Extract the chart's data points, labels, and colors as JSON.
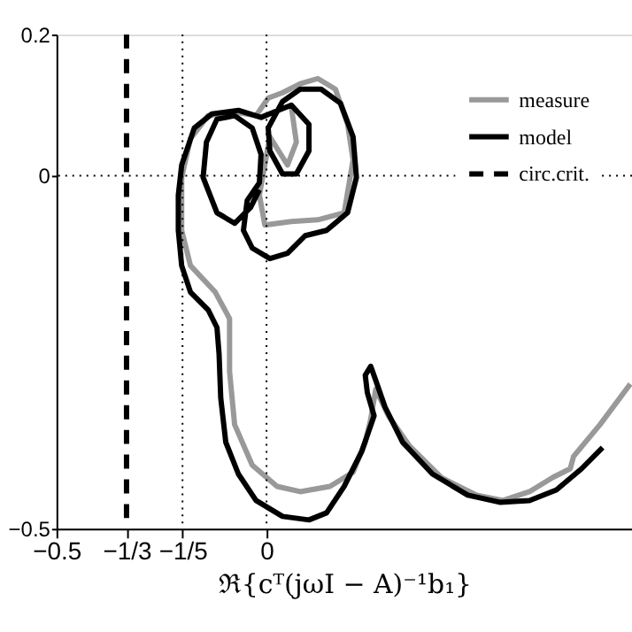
{
  "chart_data": {
    "type": "line",
    "xlabel": "ℜ{cᵀ(jωI − A)⁻¹b₁}",
    "xlim": [
      -0.5,
      0.87
    ],
    "ylim": [
      -0.5,
      0.2
    ],
    "xticks": [
      -0.5,
      {
        "value": -0.3333,
        "label": "−1/3"
      },
      {
        "value": -0.2,
        "label": "−1/5"
      },
      0
    ],
    "yticks": [
      {
        "value": -0.5,
        "label": "−0.5"
      },
      0,
      0.2
    ],
    "grid": false,
    "legend": "top right",
    "marker": "none",
    "ref_lines": [
      {
        "axis": "x",
        "value": -0.2,
        "line_style": "dotted",
        "color": "#000000"
      },
      {
        "axis": "x",
        "value": 0,
        "line_style": "dotted",
        "color": "#000000"
      },
      {
        "axis": "y",
        "value": 0,
        "line_style": "dotted",
        "color": "#000000"
      }
    ],
    "series": [
      {
        "name": "measure",
        "color": "#999999",
        "line_style": "solid",
        "x": [
          0.866,
          0.794,
          0.731,
          0.723,
          0.681,
          0.626,
          0.563,
          0.5,
          0.416,
          0.34,
          0.29,
          0.26,
          0.248,
          0.235,
          0.206,
          0.151,
          0.08,
          0.025,
          -0.034,
          -0.076,
          -0.088,
          -0.088,
          -0.122,
          -0.181,
          -0.202,
          -0.202,
          -0.181,
          -0.139,
          -0.076,
          -0.025,
          0.004,
          0.038,
          0.08,
          0.122,
          0.164,
          0.193,
          0.206,
          0.185,
          0.122,
          0.059,
          -0.004,
          -0.017,
          0.008,
          0.05,
          0.071,
          0.059
        ],
        "values": [
          -0.295,
          -0.3525,
          -0.3975,
          -0.415,
          -0.4275,
          -0.4475,
          -0.46,
          -0.4525,
          -0.4275,
          -0.3825,
          -0.34,
          -0.3025,
          -0.345,
          -0.3775,
          -0.42,
          -0.44,
          -0.4475,
          -0.44,
          -0.41,
          -0.3525,
          -0.2775,
          -0.2025,
          -0.165,
          -0.1275,
          -0.0775,
          -0.0025,
          0.0525,
          0.085,
          0.09,
          0.085,
          0.11,
          0.1175,
          0.13,
          0.1375,
          0.1225,
          0.0725,
          0.0225,
          -0.0525,
          -0.0625,
          -0.065,
          -0.07,
          -0.0275,
          0.055,
          0.015,
          0.0475,
          0.0975
        ]
      },
      {
        "name": "model",
        "color": "#000000",
        "line_style": "solid",
        "x": [
          0.8,
          0.75,
          0.69,
          0.626,
          0.555,
          0.479,
          0.395,
          0.324,
          0.282,
          0.26,
          0.248,
          0.235,
          0.24,
          0.256,
          0.227,
          0.185,
          0.143,
          0.101,
          0.038,
          -0.025,
          -0.067,
          -0.097,
          -0.109,
          -0.113,
          -0.118,
          -0.139,
          -0.181,
          -0.202,
          -0.21,
          -0.21,
          -0.202,
          -0.172,
          -0.13,
          -0.067,
          -0.013,
          0.017,
          0.059,
          0.101,
          0.101,
          0.071,
          0.038,
          0.008,
          0.004,
          0.038,
          0.08,
          0.13,
          0.176,
          0.206,
          0.214,
          0.193,
          0.143,
          0.092,
          0.05,
          0.008,
          -0.034,
          -0.055,
          -0.046,
          -0.017,
          -0.013,
          -0.034,
          -0.076,
          -0.118,
          -0.143,
          -0.151,
          -0.118,
          -0.076,
          -0.038,
          -0.017
        ],
        "values": [
          -0.385,
          -0.415,
          -0.445,
          -0.46,
          -0.4625,
          -0.4525,
          -0.4225,
          -0.3775,
          -0.3275,
          -0.29,
          -0.27,
          -0.2825,
          -0.3075,
          -0.34,
          -0.39,
          -0.44,
          -0.4775,
          -0.4875,
          -0.4825,
          -0.46,
          -0.4225,
          -0.3775,
          -0.315,
          -0.2525,
          -0.215,
          -0.19,
          -0.165,
          -0.1275,
          -0.0775,
          -0.0275,
          0.015,
          0.0675,
          0.0875,
          0.0925,
          0.0825,
          0.09,
          0.1,
          0.0725,
          0.035,
          0.0025,
          0.0025,
          0.035,
          0.0675,
          0.105,
          0.1225,
          0.1225,
          0.1025,
          0.055,
          -0.0025,
          -0.0525,
          -0.0775,
          -0.085,
          -0.11,
          -0.1175,
          -0.1025,
          -0.0775,
          -0.035,
          -0.01,
          0.03,
          0.0675,
          0.085,
          0.08,
          0.0475,
          -0.0025,
          -0.0525,
          -0.0675,
          -0.045,
          -0.02
        ]
      },
      {
        "name": "circ.crit.",
        "color": "#000000",
        "line_style": "dashed",
        "x": [
          -0.3333,
          -0.3333
        ],
        "values": [
          0.2,
          -0.5
        ]
      }
    ]
  }
}
